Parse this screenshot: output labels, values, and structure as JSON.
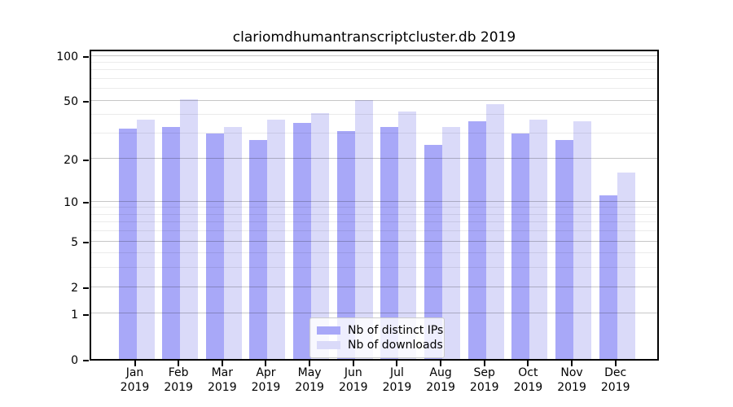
{
  "title": "clariomdhumantranscriptcluster.db 2019",
  "colors": {
    "ips_bar": "#a8a8f8",
    "downloads_bar": "#dadaf9",
    "axis": "#000000"
  },
  "legend": {
    "items": [
      {
        "label": "Nb of distinct IPs",
        "series_key": "ips"
      },
      {
        "label": "Nb of downloads",
        "series_key": "downloads"
      }
    ]
  },
  "y_axis": {
    "tick_labels": [
      "100",
      "50",
      "20",
      "10",
      "5",
      "2",
      "1",
      "0"
    ],
    "tick_values": [
      100,
      50,
      20,
      10,
      5,
      2,
      1,
      0
    ]
  },
  "x_axis": {
    "months": [
      "Jan",
      "Feb",
      "Mar",
      "Apr",
      "May",
      "Jun",
      "Jul",
      "Aug",
      "Sep",
      "Oct",
      "Nov",
      "Dec"
    ],
    "year": "2019"
  },
  "chart_data": {
    "type": "bar",
    "title": "clariomdhumantranscriptcluster.db 2019",
    "categories": [
      "Jan 2019",
      "Feb 2019",
      "Mar 2019",
      "Apr 2019",
      "May 2019",
      "Jun 2019",
      "Jul 2019",
      "Aug 2019",
      "Sep 2019",
      "Oct 2019",
      "Nov 2019",
      "Dec 2019"
    ],
    "series": [
      {
        "name": "Nb of distinct IPs",
        "color": "#a8a8f8",
        "values": [
          32,
          33,
          30,
          27,
          35,
          31,
          33,
          25,
          36,
          30,
          27,
          11
        ]
      },
      {
        "name": "Nb of downloads",
        "color": "#dadaf9",
        "values": [
          37,
          51,
          33,
          37,
          41,
          50,
          42,
          33,
          47,
          37,
          36,
          16
        ]
      }
    ],
    "xlabel": "",
    "ylabel": "",
    "y_scale": "log10(value+1)",
    "y_ticks": [
      0,
      1,
      2,
      5,
      10,
      20,
      50,
      100
    ],
    "y_minor_ticks": [
      3,
      4,
      6,
      7,
      8,
      9,
      30,
      40,
      60,
      70,
      80,
      90
    ],
    "ylim": [
      0,
      110
    ],
    "grid": true,
    "legend_position": "lower-center-inside"
  }
}
